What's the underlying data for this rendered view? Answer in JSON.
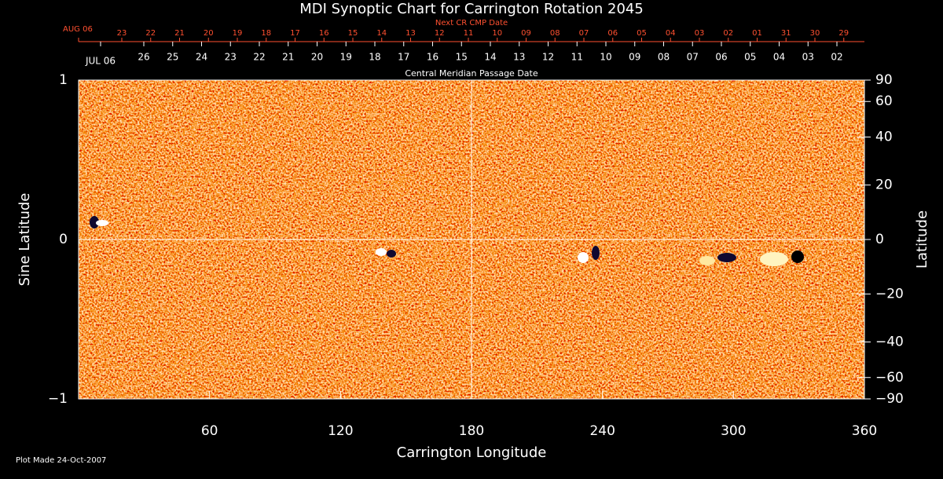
{
  "chart_data": {
    "type": "synoptic-map",
    "title": "MDI Synoptic Chart for Carrington Rotation 2045",
    "xlabel": "Carrington Longitude",
    "ylabel": "Sine Latitude",
    "y2label": "Latitude",
    "xlim": [
      0,
      360
    ],
    "xticks": [
      60,
      120,
      180,
      240,
      300,
      360
    ],
    "ylim": [
      -1,
      1
    ],
    "yticks": [
      {
        "value": -1,
        "label": "−1"
      },
      0,
      1
    ],
    "y2scale": "sine",
    "y2ticks": [
      90,
      60,
      40,
      20,
      0,
      {
        "value": -20,
        "label": "−20"
      },
      {
        "value": -40,
        "label": "−40"
      },
      {
        "value": -60,
        "label": "−60"
      },
      {
        "value": -90,
        "label": "−90"
      }
    ],
    "top_axis_title": "Next CR CMP Date",
    "top_dates": [
      "AUG 06",
      "23",
      "22",
      "21",
      "20",
      "19",
      "18",
      "17",
      "16",
      "15",
      "14",
      "13",
      "12",
      "11",
      "10",
      "09",
      "08",
      "07",
      "06",
      "05",
      "04",
      "03",
      "02",
      "01",
      "31",
      "30",
      "29"
    ],
    "cmp_axis_title": "Central Meridian Passage Date",
    "cmp_dates": [
      "JUL 06",
      "26",
      "25",
      "24",
      "23",
      "22",
      "21",
      "20",
      "19",
      "18",
      "17",
      "16",
      "15",
      "14",
      "13",
      "12",
      "11",
      "10",
      "09",
      "08",
      "07",
      "06",
      "05",
      "04",
      "03",
      "02"
    ]
  },
  "footer": "Plot Made 24-Oct-2007"
}
